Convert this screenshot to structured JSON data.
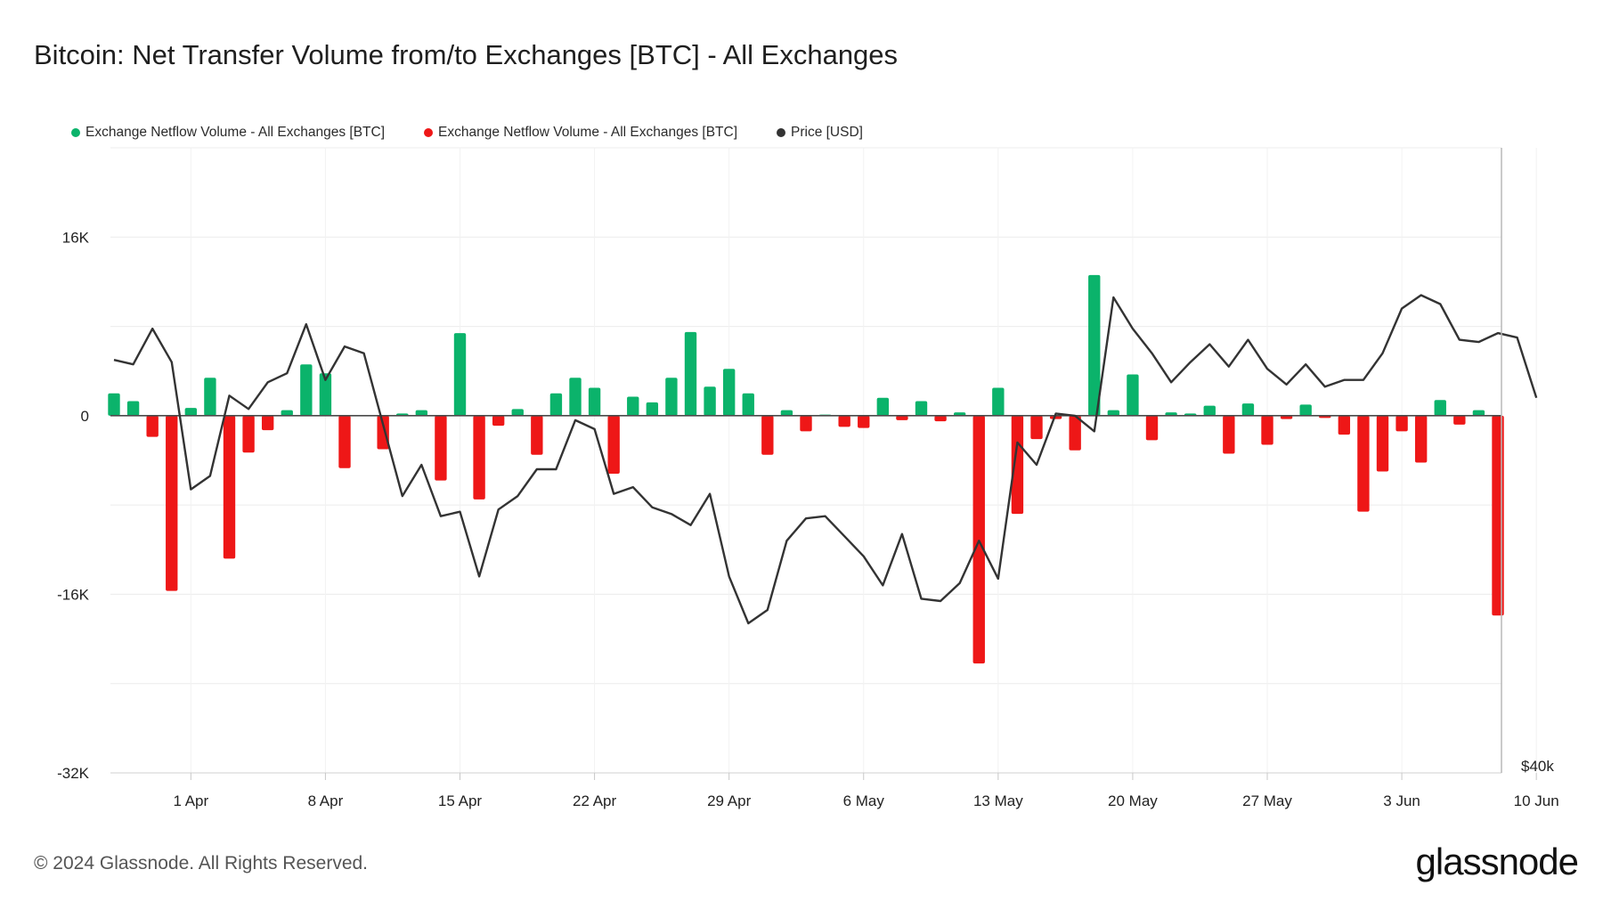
{
  "title": "Bitcoin: Net Transfer Volume from/to Exchanges [BTC] - All Exchanges",
  "legend": [
    {
      "label": "Exchange Netflow Volume - All Exchanges [BTC]",
      "color": "#0bb36b"
    },
    {
      "label": "Exchange Netflow Volume - All Exchanges [BTC]",
      "color": "#ee1717"
    },
    {
      "label": "Price [USD]",
      "color": "#333333"
    }
  ],
  "footer": "© 2024 Glassnode. All Rights Reserved.",
  "brand": "glassnode",
  "chart_data": {
    "type": "bar",
    "title": "Bitcoin: Net Transfer Volume from/to Exchanges [BTC] - All Exchanges",
    "xlabel": "",
    "ylabel": "",
    "x_start": "2024-03-28",
    "x_end": "2024-06-11",
    "x_ticks": [
      "1 Apr",
      "8 Apr",
      "15 Apr",
      "22 Apr",
      "29 Apr",
      "6 May",
      "13 May",
      "20 May",
      "27 May",
      "3 Jun",
      "10 Jun"
    ],
    "y_left_ticks": [
      "16K",
      "0",
      "-16K",
      "-32K"
    ],
    "y_left_tick_values": [
      16000,
      0,
      -16000,
      -32000
    ],
    "ylim": [
      -32000,
      24000
    ],
    "y_right_ticks": [
      "$40k"
    ],
    "colors": {
      "positive": "#0bb36b",
      "negative": "#ee1717",
      "price": "#333333"
    },
    "grid": true,
    "legend_position": "top-left",
    "series": [
      {
        "name": "Exchange Netflow Volume - All Exchanges [BTC]",
        "kind": "bar",
        "values": [
          2000,
          1300,
          -1900,
          -15700,
          700,
          3400,
          -12800,
          -3300,
          -1300,
          500,
          4600,
          3800,
          -4700,
          0,
          -3000,
          200,
          500,
          -5800,
          7400,
          -7500,
          -900,
          600,
          -3500,
          2000,
          3400,
          2500,
          -5200,
          1700,
          1200,
          3400,
          7500,
          2600,
          4200,
          2000,
          -3500,
          500,
          -1400,
          100,
          -1000,
          -1100,
          1600,
          -400,
          1300,
          -500,
          300,
          -22200,
          2500,
          -8800,
          -2100,
          -300,
          -3100,
          12600,
          500,
          3700,
          -2200,
          300,
          200,
          900,
          -3400,
          1100,
          -2600,
          -300,
          1000,
          -200,
          -1700,
          -8600,
          -5000,
          -1400,
          -4200,
          1400,
          -800,
          500,
          -17900
        ]
      },
      {
        "name": "Price [USD]",
        "kind": "line",
        "values": [
          68500,
          68300,
          69900,
          68400,
          62700,
          63300,
          66900,
          66300,
          67500,
          67900,
          70100,
          67600,
          69100,
          68800,
          65600,
          62400,
          63800,
          61500,
          61700,
          58800,
          61800,
          62400,
          63600,
          63600,
          65800,
          65400,
          62500,
          62800,
          61900,
          61600,
          61100,
          62500,
          58800,
          56700,
          57300,
          60400,
          61400,
          61500,
          60600,
          59700,
          58400,
          60700,
          57800,
          57700,
          58500,
          60400,
          58700,
          64800,
          63800,
          66100,
          66000,
          65300,
          71300,
          69900,
          68800,
          67500,
          68400,
          69200,
          68200,
          69400,
          68100,
          67400,
          68300,
          67300,
          67600,
          67600,
          68800,
          70800,
          71400,
          71000,
          69400,
          69300,
          69700,
          69500,
          66800
        ]
      }
    ]
  }
}
